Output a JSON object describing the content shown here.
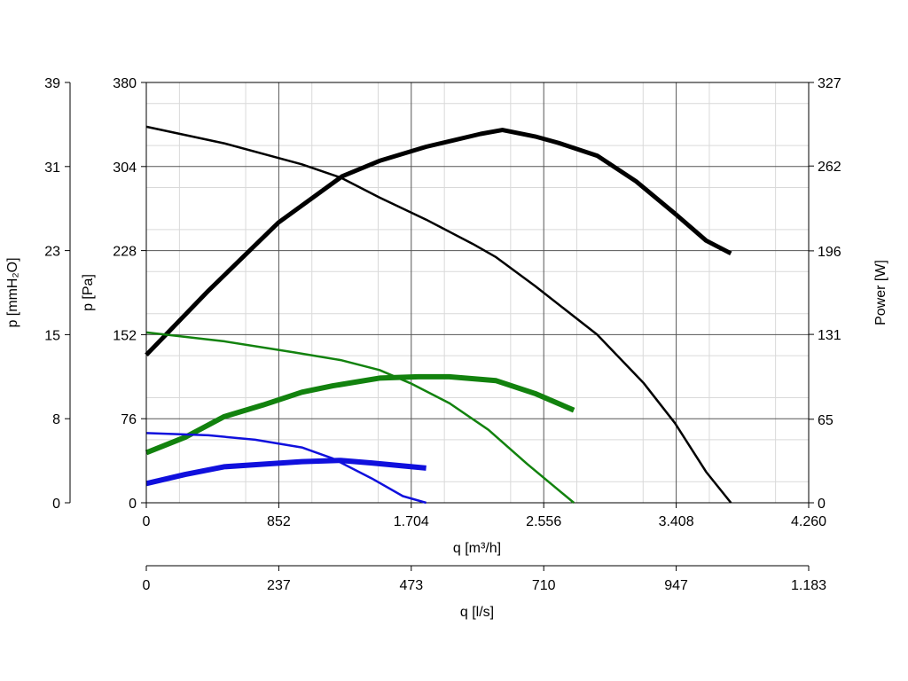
{
  "chart_data": {
    "type": "line",
    "title": "",
    "grid": true,
    "x_axis": {
      "label": "q [m³/h]",
      "range": [
        0,
        4260
      ],
      "ticks": [
        0,
        852,
        1704,
        2556,
        3408,
        4260
      ],
      "tick_labels": [
        "0",
        "852",
        "1.704",
        "2.556",
        "3.408",
        "4.260"
      ]
    },
    "x2_axis": {
      "label": "q [l/s]",
      "ticks": [
        0,
        237,
        473,
        710,
        947,
        1183
      ],
      "tick_labels": [
        "0",
        "237",
        "473",
        "710",
        "947",
        "1.183"
      ]
    },
    "y_axis": {
      "label": "p [Pa]",
      "range": [
        0,
        380
      ],
      "ticks": [
        0,
        76,
        152,
        228,
        304,
        380
      ],
      "tick_labels": [
        "0",
        "76",
        "152",
        "228",
        "304",
        "380"
      ]
    },
    "y_outer_axis": {
      "label": "p [mmH₂O]",
      "tick_labels": [
        "0",
        "8",
        "15",
        "23",
        "31",
        "39"
      ]
    },
    "y2_axis": {
      "label": "Power [W]",
      "range": [
        0,
        327
      ],
      "ticks": [
        0,
        65,
        131,
        196,
        262,
        327
      ],
      "tick_labels": [
        "0",
        "65",
        "131",
        "196",
        "262",
        "327"
      ]
    },
    "series": [
      {
        "kind": "pressure",
        "axis": "y",
        "color": "#000000",
        "width": 2.5,
        "points": [
          [
            0,
            340
          ],
          [
            500,
            325
          ],
          [
            1000,
            306
          ],
          [
            1250,
            294
          ],
          [
            1500,
            276
          ],
          [
            1800,
            256
          ],
          [
            2100,
            234
          ],
          [
            2250,
            222
          ],
          [
            2500,
            196
          ],
          [
            2900,
            152
          ],
          [
            3200,
            108
          ],
          [
            3400,
            72
          ],
          [
            3600,
            28
          ],
          [
            3760,
            0
          ]
        ]
      },
      {
        "kind": "power",
        "axis": "y2",
        "color": "#000000",
        "width": 5,
        "points": [
          [
            0,
            115
          ],
          [
            400,
            165
          ],
          [
            850,
            218
          ],
          [
            1260,
            254
          ],
          [
            1500,
            266
          ],
          [
            1800,
            277
          ],
          [
            2150,
            287
          ],
          [
            2290,
            290
          ],
          [
            2500,
            285
          ],
          [
            2650,
            280
          ],
          [
            2900,
            270
          ],
          [
            3150,
            250
          ],
          [
            3400,
            225
          ],
          [
            3600,
            204
          ],
          [
            3760,
            194
          ]
        ]
      },
      {
        "kind": "pressure",
        "axis": "y",
        "color": "#12820e",
        "width": 2.5,
        "points": [
          [
            0,
            154
          ],
          [
            500,
            146
          ],
          [
            950,
            136
          ],
          [
            1250,
            129
          ],
          [
            1500,
            120
          ],
          [
            1700,
            108
          ],
          [
            1950,
            90
          ],
          [
            2200,
            66
          ],
          [
            2450,
            35
          ],
          [
            2750,
            0
          ]
        ]
      },
      {
        "kind": "power",
        "axis": "y2",
        "color": "#12820e",
        "width": 6,
        "points": [
          [
            0,
            39
          ],
          [
            250,
            51
          ],
          [
            500,
            67
          ],
          [
            750,
            76
          ],
          [
            1000,
            86
          ],
          [
            1200,
            91
          ],
          [
            1500,
            97
          ],
          [
            1750,
            98
          ],
          [
            1950,
            98
          ],
          [
            2250,
            95
          ],
          [
            2500,
            85
          ],
          [
            2750,
            72
          ]
        ]
      },
      {
        "kind": "pressure",
        "axis": "y",
        "color": "#1010dd",
        "width": 2.5,
        "points": [
          [
            0,
            63
          ],
          [
            400,
            61
          ],
          [
            700,
            57
          ],
          [
            1000,
            50
          ],
          [
            1200,
            40
          ],
          [
            1450,
            22
          ],
          [
            1650,
            6
          ],
          [
            1800,
            0
          ]
        ]
      },
      {
        "kind": "power",
        "axis": "y2",
        "color": "#1010dd",
        "width": 6,
        "points": [
          [
            0,
            15
          ],
          [
            250,
            22
          ],
          [
            500,
            28
          ],
          [
            750,
            30
          ],
          [
            1000,
            32
          ],
          [
            1250,
            33
          ],
          [
            1450,
            31
          ],
          [
            1800,
            27
          ]
        ]
      }
    ]
  }
}
